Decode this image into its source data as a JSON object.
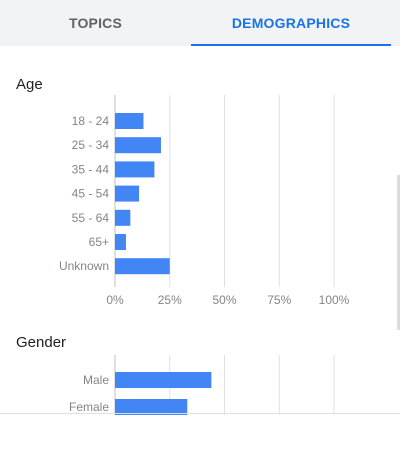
{
  "tabs": {
    "topics": "TOPICS",
    "demographics": "DEMOGRAPHICS",
    "active": "demographics"
  },
  "colors": {
    "bar": "#4285f4",
    "accent": "#1a73e8",
    "grid": "#e0e0e0",
    "axis_text": "#80868b"
  },
  "age": {
    "title": "Age"
  },
  "gender": {
    "title": "Gender"
  },
  "chart_data": [
    {
      "type": "bar",
      "orientation": "horizontal",
      "title": "Age",
      "categories": [
        "18 - 24",
        "25 - 34",
        "35 - 44",
        "45 - 54",
        "55 - 64",
        "65+",
        "Unknown"
      ],
      "values": [
        13,
        21,
        18,
        11,
        7,
        5,
        25
      ],
      "xlim": [
        0,
        100
      ],
      "xticks": [
        "0%",
        "25%",
        "50%",
        "75%",
        "100%"
      ],
      "grid": true
    },
    {
      "type": "bar",
      "orientation": "horizontal",
      "title": "Gender",
      "categories": [
        "Male",
        "Female"
      ],
      "values": [
        44,
        33
      ],
      "xlim": [
        0,
        100
      ],
      "grid": true
    }
  ]
}
